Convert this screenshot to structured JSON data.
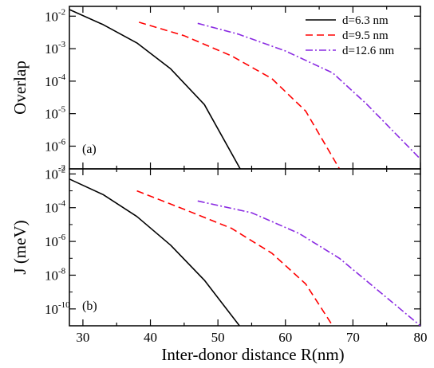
{
  "chart_data": [
    {
      "type": "line",
      "panel_label": "(a)",
      "ylabel": "Overlap",
      "yscale": "log",
      "xlim": [
        28,
        80
      ],
      "ylim": [
        2e-07,
        0.02
      ],
      "y_ticks": [
        {
          "value": 0.01,
          "base": "10",
          "exp": "-2"
        },
        {
          "value": 0.001,
          "base": "10",
          "exp": "-3"
        },
        {
          "value": 0.0001,
          "base": "10",
          "exp": "-4"
        },
        {
          "value": 1e-05,
          "base": "10",
          "exp": "-5"
        },
        {
          "value": 1e-06,
          "base": "10",
          "exp": "-6"
        }
      ],
      "bottom_tick": {
        "base": "",
        "exp": "-2"
      },
      "legend": {
        "position": "top-right"
      },
      "series": [
        {
          "name": "d=6.3 nm",
          "color": "#000000",
          "dash": "solid",
          "points": [
            [
              28,
              0.016
            ],
            [
              33,
              0.0055
            ],
            [
              38,
              0.0015
            ],
            [
              43,
              0.00024
            ],
            [
              48,
              1.9e-05
            ],
            [
              53.3,
              2e-07
            ]
          ]
        },
        {
          "name": "d=9.5 nm",
          "color": "#ff0000",
          "dash": "dash",
          "points": [
            [
              38.3,
              0.0065
            ],
            [
              45,
              0.0025
            ],
            [
              52,
              0.0006
            ],
            [
              58,
              0.00012
            ],
            [
              63,
              1.2e-05
            ],
            [
              68,
              2e-07
            ]
          ]
        },
        {
          "name": "d=12.6 nm",
          "color": "#8a2be2",
          "dash": "dashdot",
          "points": [
            [
              47,
              0.006
            ],
            [
              53,
              0.0028
            ],
            [
              60,
              0.00085
            ],
            [
              67,
              0.00018
            ],
            [
              72,
              2e-05
            ],
            [
              80,
              4e-07
            ]
          ]
        }
      ]
    },
    {
      "type": "line",
      "panel_label": "(b)",
      "ylabel": "J (meV)",
      "xlabel": "Inter-donor distance  R(nm)",
      "yscale": "log",
      "xlim": [
        28,
        80
      ],
      "ylim": [
        1e-11,
        0.02
      ],
      "x_ticks": [
        "30",
        "40",
        "50",
        "60",
        "70",
        "80"
      ],
      "y_ticks": [
        {
          "value": 0.01,
          "base": "10",
          "exp": "-2"
        },
        {
          "value": 0.0001,
          "base": "10",
          "exp": "-4"
        },
        {
          "value": 1e-06,
          "base": "10",
          "exp": "-6"
        },
        {
          "value": 1e-08,
          "base": "10",
          "exp": "-8"
        },
        {
          "value": 1e-10,
          "base": "10",
          "exp": "-10"
        }
      ],
      "series": [
        {
          "name": "d=6.3 nm",
          "color": "#000000",
          "dash": "solid",
          "points": [
            [
              28,
              0.005
            ],
            [
              33,
              0.0006
            ],
            [
              38,
              3e-05
            ],
            [
              43,
              6e-07
            ],
            [
              48,
              5e-09
            ],
            [
              53.2,
              1e-11
            ]
          ]
        },
        {
          "name": "d=9.5 nm",
          "color": "#ff0000",
          "dash": "dash",
          "points": [
            [
              38,
              0.001
            ],
            [
              45,
              8e-05
            ],
            [
              52,
              6e-06
            ],
            [
              58,
              2e-07
            ],
            [
              63,
              3e-09
            ],
            [
              67,
              1e-11
            ]
          ]
        },
        {
          "name": "d=12.6 nm",
          "color": "#8a2be2",
          "dash": "dashdot",
          "points": [
            [
              47,
              0.00025
            ],
            [
              55,
              5e-05
            ],
            [
              62,
              3e-06
            ],
            [
              68,
              1e-07
            ],
            [
              74,
              1e-09
            ],
            [
              80,
              1e-11
            ]
          ]
        }
      ]
    }
  ]
}
